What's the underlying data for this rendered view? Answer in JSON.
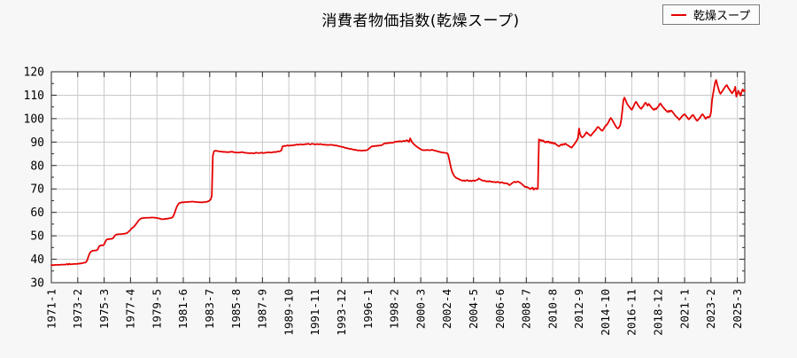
{
  "page": {
    "background": "#f7f7f7",
    "plot_background": "#ffffff",
    "grid_color": "#c9c9c9",
    "axis_color": "#2a2a2a"
  },
  "header": {
    "title": "消費者物価指数(乾燥スープ)"
  },
  "legend": {
    "label": "乾燥スープ",
    "line_color": "#e60000",
    "position": "top-right"
  },
  "chart_data": {
    "type": "line",
    "title": "消費者物価指数(乾燥スープ)",
    "xlabel": "",
    "ylabel": "",
    "ylim": [
      30,
      120
    ],
    "y_ticks": [
      30,
      40,
      50,
      60,
      70,
      80,
      90,
      100,
      110,
      120
    ],
    "y_minor_step": 5,
    "grid": true,
    "legend_position": "top-right",
    "x_start": "1971-01",
    "x_freq": "monthly",
    "x_tick_interval_months": 25,
    "x_tick_labels": [
      "1971-1",
      "1973-2",
      "1975-3",
      "1977-4",
      "1979-5",
      "1981-6",
      "1983-7",
      "1985-8",
      "1987-9",
      "1989-10",
      "1991-11",
      "1993-12",
      "1996-1",
      "1998-2",
      "2000-3",
      "2002-4",
      "2004-5",
      "2006-6",
      "2008-7",
      "2010-8",
      "2012-9",
      "2014-10",
      "2016-11",
      "2018-12",
      "2021-1",
      "2023-2",
      "2025-3"
    ],
    "series": [
      {
        "name": "乾燥スープ",
        "color": "#e60000",
        "values": [
          37.5,
          37.5,
          37.5,
          37.5,
          37.6,
          37.6,
          37.6,
          37.6,
          37.6,
          37.7,
          37.7,
          37.7,
          37.7,
          37.7,
          37.8,
          38.0,
          37.7,
          38.1,
          37.8,
          37.9,
          37.9,
          38.0,
          38.0,
          38.0,
          38.0,
          38.1,
          38.1,
          38.2,
          38.2,
          38.3,
          38.4,
          38.5,
          38.6,
          38.8,
          39.6,
          41.0,
          42.2,
          43.0,
          43.4,
          43.6,
          43.7,
          43.7,
          43.8,
          43.8,
          44.2,
          45.3,
          45.8,
          45.9,
          45.9,
          46.0,
          46.3,
          47.3,
          48.2,
          48.5,
          48.6,
          48.6,
          48.7,
          48.7,
          48.8,
          49.3,
          50.0,
          50.4,
          50.6,
          50.6,
          50.7,
          50.7,
          50.7,
          50.8,
          50.8,
          50.9,
          51.0,
          51.1,
          51.3,
          51.7,
          52.1,
          52.6,
          53.1,
          53.5,
          53.8,
          54.3,
          54.9,
          55.5,
          56.1,
          56.7,
          57.1,
          57.4,
          57.5,
          57.6,
          57.6,
          57.7,
          57.7,
          57.7,
          57.7,
          57.7,
          57.8,
          57.8,
          57.8,
          57.8,
          57.7,
          57.7,
          57.6,
          57.5,
          57.4,
          57.3,
          57.2,
          57.1,
          57.1,
          57.2,
          57.2,
          57.3,
          57.3,
          57.4,
          57.5,
          57.6,
          57.7,
          58.0,
          58.8,
          60.0,
          61.4,
          62.5,
          63.3,
          63.9,
          64.1,
          64.2,
          64.3,
          64.3,
          64.3,
          64.4,
          64.4,
          64.4,
          64.5,
          64.5,
          64.5,
          64.6,
          64.6,
          64.5,
          64.5,
          64.4,
          64.4,
          64.4,
          64.3,
          64.3,
          64.3,
          64.3,
          64.3,
          64.4,
          64.4,
          64.5,
          64.6,
          64.8,
          65.1,
          65.6,
          67.0,
          84.0,
          86.0,
          86.3,
          86.3,
          86.2,
          86.1,
          86.0,
          86.0,
          85.9,
          85.9,
          85.8,
          85.8,
          85.8,
          85.7,
          85.7,
          85.7,
          85.8,
          85.8,
          85.9,
          85.8,
          85.7,
          85.6,
          85.6,
          85.5,
          85.5,
          85.6,
          85.6,
          85.7,
          85.7,
          85.6,
          85.5,
          85.4,
          85.4,
          85.3,
          85.3,
          85.2,
          85.3,
          85.3,
          85.2,
          85.2,
          85.3,
          85.5,
          85.4,
          85.3,
          85.3,
          85.4,
          85.5,
          85.4,
          85.3,
          85.4,
          85.5,
          85.5,
          85.6,
          85.7,
          85.6,
          85.5,
          85.6,
          85.7,
          85.8,
          85.7,
          85.8,
          85.9,
          86.0,
          86.0,
          86.2,
          86.5,
          88.1,
          88.3,
          88.4,
          88.3,
          88.5,
          88.6,
          88.4,
          88.5,
          88.6,
          88.5,
          88.6,
          88.8,
          88.7,
          88.9,
          89.0,
          88.8,
          88.9,
          89.1,
          89.0,
          88.9,
          89.0,
          89.0,
          89.2,
          89.1,
          89.3,
          89.2,
          89.0,
          89.1,
          89.3,
          89.2,
          89.1,
          89.0,
          89.1,
          89.2,
          89.0,
          89.1,
          89.2,
          89.0,
          88.9,
          89.0,
          88.8,
          88.9,
          88.8,
          88.7,
          88.8,
          88.8,
          88.9,
          88.7,
          88.8,
          88.6,
          88.5,
          88.6,
          88.4,
          88.3,
          88.2,
          88.1,
          88.0,
          87.9,
          87.8,
          87.6,
          87.5,
          87.4,
          87.3,
          87.2,
          87.0,
          87.1,
          86.9,
          86.8,
          86.7,
          86.7,
          86.6,
          86.5,
          86.4,
          86.5,
          86.4,
          86.3,
          86.4,
          86.5,
          86.4,
          86.5,
          86.6,
          86.8,
          87.2,
          87.6,
          88.0,
          88.2,
          88.3,
          88.2,
          88.4,
          88.3,
          88.5,
          88.4,
          88.6,
          88.5,
          88.7,
          88.9,
          89.3,
          89.5,
          89.4,
          89.6,
          89.5,
          89.7,
          89.6,
          89.8,
          89.7,
          89.8,
          90.0,
          90.2,
          90.1,
          90.3,
          90.2,
          90.4,
          90.3,
          90.2,
          90.4,
          90.5,
          90.4,
          90.6,
          90.8,
          90.4,
          90.1,
          91.6,
          90.6,
          89.8,
          89.3,
          88.9,
          88.5,
          88.1,
          87.8,
          87.5,
          87.2,
          86.9,
          86.7,
          86.6,
          86.5,
          86.6,
          86.5,
          86.7,
          86.6,
          86.5,
          86.6,
          86.6,
          86.7,
          86.5,
          86.4,
          86.3,
          86.2,
          86.0,
          85.9,
          85.8,
          85.7,
          85.6,
          85.5,
          85.5,
          85.4,
          85.3,
          85.3,
          84.6,
          82.6,
          80.4,
          78.4,
          77.0,
          76.1,
          75.4,
          74.9,
          74.7,
          74.4,
          74.2,
          74.0,
          73.8,
          73.6,
          73.5,
          73.7,
          73.4,
          73.6,
          73.8,
          73.5,
          73.4,
          73.6,
          73.3,
          73.5,
          73.7,
          73.4,
          73.6,
          73.8,
          74.0,
          74.5,
          74.2,
          73.9,
          73.7,
          73.5,
          73.6,
          73.4,
          73.2,
          73.3,
          73.1,
          73.4,
          73.2,
          73.0,
          73.1,
          72.9,
          73.0,
          72.8,
          72.9,
          73.1,
          72.8,
          72.6,
          72.7,
          72.9,
          72.6,
          72.4,
          72.5,
          72.3,
          72.4,
          72.0,
          71.6,
          71.9,
          72.3,
          72.6,
          72.9,
          73.1,
          72.8,
          73.0,
          73.2,
          72.9,
          72.7,
          72.4,
          72.0,
          71.6,
          71.2,
          70.8,
          70.9,
          70.7,
          70.5,
          70.2,
          69.9,
          70.3,
          70.6,
          69.7,
          70.1,
          70.3,
          69.9,
          70.2,
          91.2,
          90.6,
          90.9,
          90.4,
          90.7,
          90.2,
          89.8,
          90.2,
          89.9,
          90.3,
          89.7,
          90.0,
          89.5,
          89.8,
          89.3,
          89.6,
          89.1,
          88.8,
          88.4,
          88.2,
          88.6,
          89.0,
          88.7,
          89.2,
          88.9,
          89.4,
          89.0,
          88.7,
          88.4,
          88.1,
          87.9,
          87.6,
          88.2,
          88.8,
          89.4,
          90.1,
          90.8,
          91.8,
          95.8,
          93.4,
          92.4,
          92.0,
          92.3,
          92.8,
          93.5,
          94.2,
          93.8,
          93.4,
          93.0,
          92.7,
          93.2,
          93.8,
          94.3,
          94.8,
          95.3,
          96.1,
          96.5,
          96.1,
          95.6,
          95.1,
          94.8,
          95.4,
          96.2,
          96.8,
          97.3,
          97.8,
          98.6,
          99.6,
          100.3,
          99.7,
          99.0,
          98.2,
          97.4,
          96.6,
          96.0,
          95.8,
          96.4,
          97.2,
          99.5,
          103.5,
          107.8,
          109.0,
          108.0,
          106.8,
          106.0,
          105.4,
          104.8,
          104.2,
          103.8,
          104.6,
          105.6,
          106.6,
          107.2,
          106.5,
          105.7,
          105.1,
          104.5,
          104.2,
          104.9,
          105.4,
          106.3,
          106.8,
          106.2,
          105.5,
          106.3,
          105.8,
          105.1,
          104.6,
          104.1,
          103.7,
          104.3,
          104.0,
          104.7,
          105.1,
          105.9,
          106.5,
          105.9,
          105.2,
          104.7,
          104.1,
          103.7,
          103.2,
          102.8,
          103.4,
          102.9,
          103.5,
          103.2,
          102.6,
          102.0,
          101.4,
          100.9,
          100.5,
          100.1,
          99.5,
          100.1,
          100.7,
          101.2,
          101.6,
          101.9,
          101.4,
          100.8,
          100.2,
          99.7,
          100.2,
          100.7,
          101.3,
          101.6,
          100.9,
          100.2,
          99.5,
          99.1,
          99.6,
          100.1,
          100.7,
          101.5,
          101.9,
          101.3,
          100.6,
          99.9,
          100.4,
          100.8,
          100.5,
          101.0,
          102.6,
          107.8,
          110.6,
          113.2,
          115.6,
          116.5,
          114.4,
          112.9,
          111.4,
          110.6,
          111.2,
          111.9,
          112.6,
          113.3,
          113.9,
          114.3,
          113.5,
          112.7,
          112.1,
          111.4,
          110.8,
          111.5,
          112.1,
          113.6,
          109.4,
          110.7,
          111.9,
          110.8,
          109.8,
          111.4,
          112.5,
          111.7,
          112.1
        ]
      }
    ]
  }
}
